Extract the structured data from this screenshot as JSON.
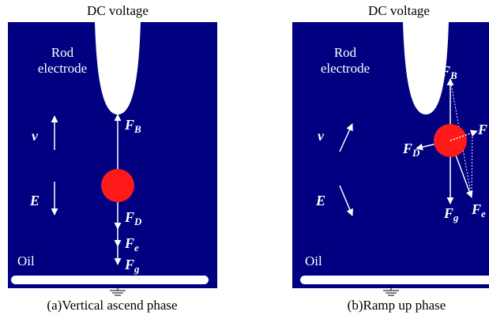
{
  "panels": [
    {
      "title": "DC voltage",
      "electrode": [
        "Rod",
        "electrode"
      ],
      "velocity": "v",
      "field": "E",
      "forces": [
        {
          "symbol": "F",
          "subscript": "B"
        },
        {
          "symbol": "F",
          "subscript": "D"
        },
        {
          "symbol": "F",
          "subscript": "e"
        },
        {
          "symbol": "F",
          "subscript": "g"
        }
      ],
      "medium": "Oil",
      "caption": "(a)Vertical ascend phase"
    },
    {
      "title": "DC voltage",
      "electrode": [
        "Rod",
        "electrode"
      ],
      "velocity": "v",
      "field": "E",
      "forces": [
        {
          "symbol": "F",
          "subscript": "B"
        },
        {
          "symbol": "F",
          "subscript": "D"
        },
        {
          "symbol": "F",
          "subscript": "g"
        },
        {
          "symbol": "F",
          "subscript": "e"
        },
        {
          "symbol": "F"
        }
      ],
      "medium": "Oil",
      "caption": "(b)Ramp up phase"
    }
  ]
}
